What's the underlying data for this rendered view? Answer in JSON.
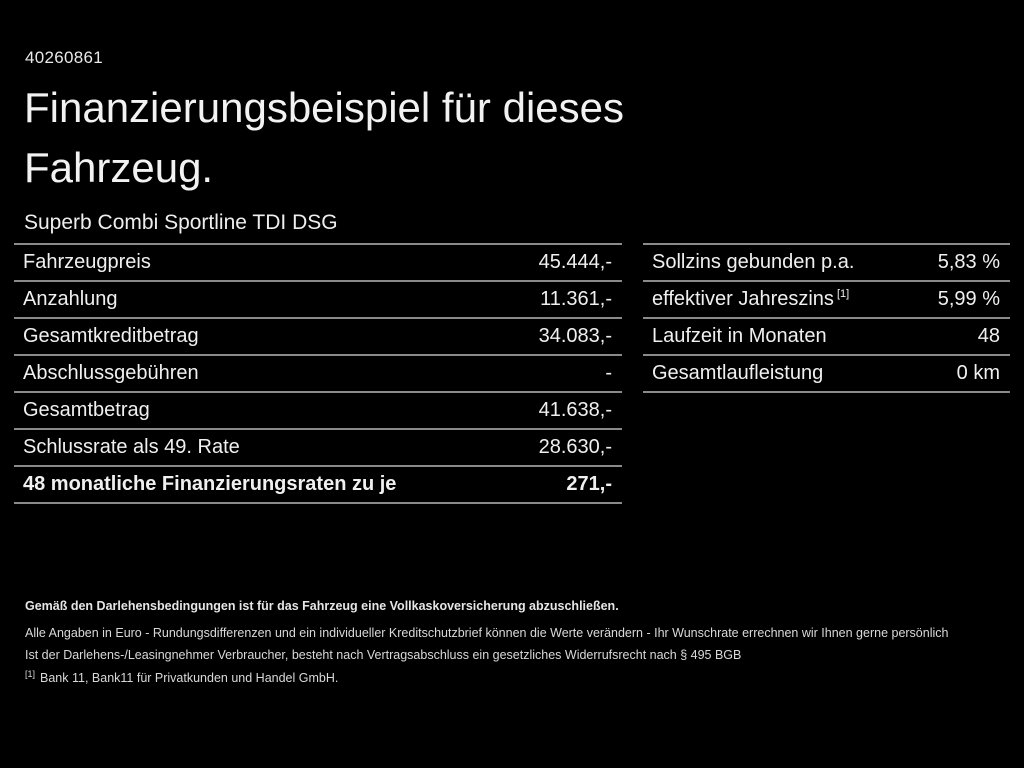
{
  "header": {
    "vehicle_id": "40260861",
    "title_line1": "Finanzierungsbeispiel für dieses",
    "title_line2": "Fahrzeug.",
    "subtitle": "Superb Combi Sportline TDI DSG"
  },
  "left_table": {
    "rows": [
      {
        "label": "Fahrzeugpreis",
        "value": "45.444,-"
      },
      {
        "label": "Anzahlung",
        "value": "11.361,-"
      },
      {
        "label": "Gesamtkreditbetrag",
        "value": "34.083,-"
      },
      {
        "label": "Abschlussgebühren",
        "value": "-"
      },
      {
        "label": "Gesamtbetrag",
        "value": "41.638,-"
      },
      {
        "label": "Schlussrate als 49. Rate",
        "value": "28.630,-"
      },
      {
        "label": "48 monatliche Finanzierungsraten zu je",
        "value": "271,-"
      }
    ]
  },
  "right_table": {
    "rows": [
      {
        "label": "Sollzins gebunden p.a.",
        "value": "5,83 %"
      },
      {
        "label": "effektiver Jahreszins",
        "sup": "[1]",
        "value": "5,99 %"
      },
      {
        "label": "Laufzeit in Monaten",
        "value": "48"
      },
      {
        "label": "Gesamtlaufleistung",
        "value": "0 km"
      }
    ]
  },
  "fineprint": {
    "insurance_note": "Gemäß den Darlehensbedingungen ist für das Fahrzeug eine Vollkaskoversicherung abzuschließen.",
    "disclaimer": "Alle Angaben in Euro - Rundungsdifferenzen und ein individueller Kreditschutzbrief können die Werte verändern - Ihr Wunschrate errechnen wir Ihnen gerne persönlich",
    "withdrawal_note": "Ist der Darlehens-/Leasingnehmer Verbraucher, besteht nach Vertragsabschluss ein gesetzliches Widerrufsrecht nach § 495 BGB",
    "footnote_marker": "[1]",
    "footnote_text": "Bank 11, Bank11 für Privatkunden und Handel GmbH."
  },
  "colors": {
    "background": "#000000",
    "text": "#f0f0f0",
    "divider": "#8a8a8a",
    "fineprint_text": "#d9d9d9"
  }
}
